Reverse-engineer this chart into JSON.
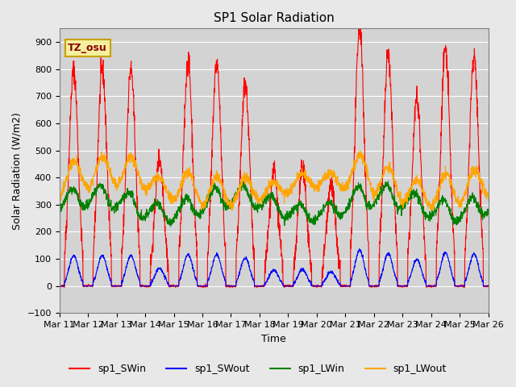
{
  "title": "SP1 Solar Radiation",
  "xlabel": "Time",
  "ylabel": "Solar Radiation (W/m2)",
  "ylim": [
    -100,
    950
  ],
  "yticks": [
    -100,
    0,
    100,
    200,
    300,
    400,
    500,
    600,
    700,
    800,
    900
  ],
  "x_tick_labels": [
    "Mar 11",
    "Mar 12",
    "Mar 13",
    "Mar 14",
    "Mar 15",
    "Mar 16",
    "Mar 17",
    "Mar 18",
    "Mar 19",
    "Mar 20",
    "Mar 21",
    "Mar 22",
    "Mar 23",
    "Mar 24",
    "Mar 25",
    "Mar 26"
  ],
  "legend_labels": [
    "sp1_SWin",
    "sp1_SWout",
    "sp1_LWin",
    "sp1_LWout"
  ],
  "legend_colors": [
    "red",
    "blue",
    "green",
    "orange"
  ],
  "tz_label": "TZ_osu",
  "bg_color": "#e8e8e8",
  "plot_bg_color": "#d3d3d3",
  "grid_color": "white",
  "series_colors": {
    "SWin": "red",
    "SWout": "blue",
    "LWin": "green",
    "LWout": "orange"
  },
  "n_days": 15,
  "pts_per_day": 144,
  "sw_peaks": [
    800,
    800,
    800,
    470,
    830,
    825,
    745,
    425,
    430,
    375,
    950,
    850,
    700,
    875,
    850
  ],
  "sw_noise_scale": 20,
  "swout_ratio": 0.14,
  "swout_noise_scale": 3,
  "lw_base": 290,
  "lwout_base": 320
}
